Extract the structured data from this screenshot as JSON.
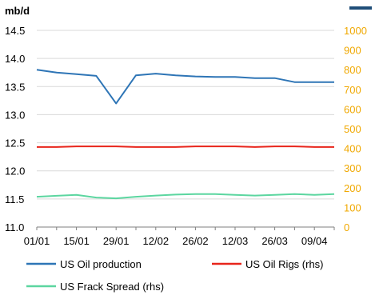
{
  "chart_data": {
    "type": "line",
    "ylabel": "mb/d",
    "ylim": [
      11.0,
      14.5
    ],
    "yticks": [
      "14.5",
      "14.0",
      "13.5",
      "13.0",
      "12.5",
      "12.0",
      "11.5",
      "11.0"
    ],
    "y2lim": [
      0,
      1000
    ],
    "y2ticks": [
      "1000",
      "900",
      "800",
      "700",
      "600",
      "500",
      "400",
      "300",
      "200",
      "100",
      "0"
    ],
    "xticks": [
      "01/01",
      "15/01",
      "29/01",
      "12/02",
      "26/02",
      "12/03",
      "26/03",
      "09/04"
    ],
    "x": [
      "01/01",
      "08/01",
      "15/01",
      "22/01",
      "29/01",
      "05/02",
      "12/02",
      "19/02",
      "26/02",
      "05/03",
      "12/03",
      "19/03",
      "26/03",
      "02/04",
      "09/04",
      "16/04"
    ],
    "grid": true,
    "legend_position": "bottom",
    "series": [
      {
        "name": "US Oil production",
        "axis": "left",
        "color": "#2E75B6",
        "values": [
          13.8,
          13.75,
          13.72,
          13.69,
          13.2,
          13.7,
          13.73,
          13.7,
          13.68,
          13.67,
          13.67,
          13.65,
          13.65,
          13.58,
          13.58,
          13.58
        ]
      },
      {
        "name": "US Oil Rigs (rhs)",
        "axis": "right",
        "color": "#E8251B",
        "values": [
          407,
          407,
          410,
          410,
          410,
          407,
          407,
          407,
          410,
          410,
          410,
          407,
          410,
          410,
          407,
          407
        ]
      },
      {
        "name": "US Frack Spread (rhs)",
        "axis": "right",
        "color": "#5CD6A0",
        "values": [
          154,
          159,
          164,
          150,
          146,
          154,
          160,
          165,
          168,
          168,
          164,
          160,
          164,
          168,
          164,
          168
        ]
      }
    ],
    "right_axis_color": "#F0A800"
  }
}
